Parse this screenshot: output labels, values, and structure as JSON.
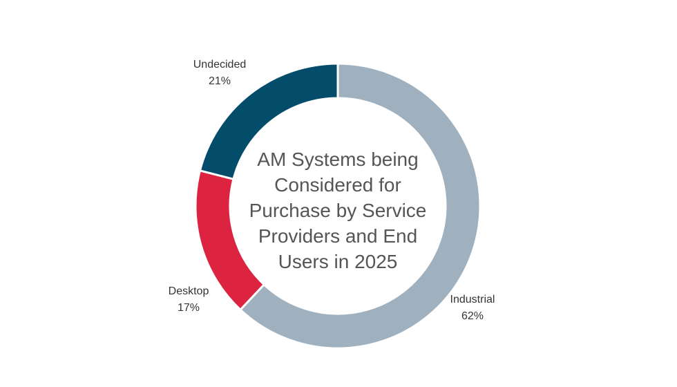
{
  "chart_data": {
    "type": "pie",
    "variant": "donut",
    "title": "AM Systems being Considered for Purchase by Service Providers and End Users in 2025",
    "categories": [
      "Industrial",
      "Desktop",
      "Undecided"
    ],
    "values": [
      62,
      17,
      21
    ],
    "labels": [
      "62%",
      "17%",
      "21%"
    ],
    "colors": [
      "#9fb1be",
      "#dc2340",
      "#034d6b"
    ],
    "legend": "none"
  }
}
